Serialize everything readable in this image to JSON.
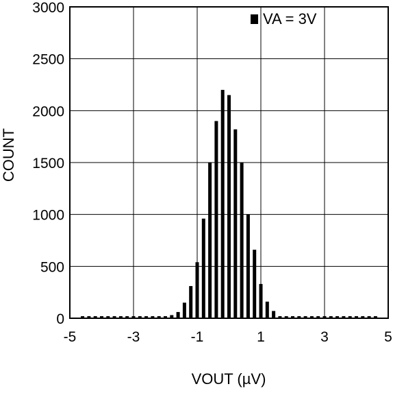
{
  "chart_data": {
    "type": "bar",
    "xlabel": "VOUT (µV)",
    "ylabel": "COUNT",
    "xlim": [
      -5,
      5
    ],
    "ylim": [
      0,
      3000
    ],
    "xticks": [
      -5,
      -3,
      -1,
      1,
      3,
      5
    ],
    "xtick_labels": [
      "-5",
      "-3",
      "-1",
      "1",
      "3",
      "5"
    ],
    "yticks": [
      0,
      500,
      1000,
      1500,
      2000,
      2500,
      3000
    ],
    "ytick_labels": [
      "0",
      "500",
      "1000",
      "1500",
      "2000",
      "2500",
      "3000"
    ],
    "grid": true,
    "legend": {
      "label": "VA = 3V",
      "position": "top-right"
    },
    "series": [
      {
        "name": "VA = 3V",
        "color": "#000000",
        "x": [
          -4.6,
          -4.4,
          -4.2,
          -4.0,
          -3.8,
          -3.6,
          -3.4,
          -3.2,
          -3.0,
          -2.8,
          -2.6,
          -2.4,
          -2.2,
          -2.0,
          -1.8,
          -1.6,
          -1.4,
          -1.2,
          -1.0,
          -0.8,
          -0.6,
          -0.4,
          -0.2,
          0.0,
          0.2,
          0.4,
          0.6,
          0.8,
          1.0,
          1.2,
          1.4,
          1.6,
          1.8,
          2.0,
          2.2,
          2.4,
          2.6,
          2.8,
          3.0,
          3.2,
          3.4,
          3.6,
          3.8,
          4.0,
          4.2,
          4.4,
          4.6
        ],
        "values": [
          0,
          0,
          0,
          0,
          0,
          0,
          0,
          0,
          0,
          0,
          0,
          0,
          10,
          10,
          30,
          60,
          150,
          310,
          540,
          960,
          1500,
          1900,
          2200,
          2150,
          1820,
          1500,
          1000,
          660,
          330,
          160,
          70,
          20,
          10,
          0,
          0,
          0,
          0,
          0,
          0,
          0,
          0,
          0,
          0,
          0,
          0,
          0,
          0
        ]
      }
    ]
  }
}
